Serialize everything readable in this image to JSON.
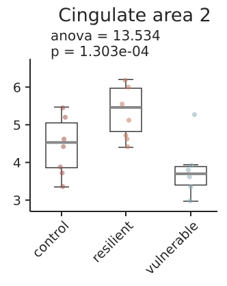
{
  "chart_data": {
    "type": "box",
    "title": "Cingulate area 2",
    "annotations": [
      "anova = 13.534",
      "p = 1.303e-04"
    ],
    "xlabel": "",
    "ylabel": "",
    "ylim": [
      2.7,
      6.75
    ],
    "yticks": [
      3,
      4,
      5,
      6
    ],
    "categories": [
      "control",
      "resilient",
      "vulnerable"
    ],
    "boxes": [
      {
        "name": "control",
        "whislo": 3.35,
        "q1": 3.86,
        "med": 4.53,
        "q3": 5.05,
        "whishi": 5.47,
        "fliers": []
      },
      {
        "name": "resilient",
        "whislo": 4.4,
        "q1": 4.82,
        "med": 5.46,
        "q3": 5.97,
        "whishi": 6.2,
        "fliers": []
      },
      {
        "name": "vulnerable",
        "whislo": 2.97,
        "q1": 3.4,
        "med": 3.7,
        "q3": 3.89,
        "whishi": 3.94,
        "fliers": [
          5.27
        ]
      }
    ],
    "points": [
      {
        "category": "control",
        "offset": 0.02,
        "y": 5.45
      },
      {
        "category": "control",
        "offset": 0.06,
        "y": 5.2
      },
      {
        "category": "control",
        "offset": 0.04,
        "y": 4.62
      },
      {
        "category": "control",
        "offset": 0.03,
        "y": 4.42
      },
      {
        "category": "control",
        "offset": -0.02,
        "y": 3.88
      },
      {
        "category": "control",
        "offset": 0.01,
        "y": 3.72
      },
      {
        "category": "control",
        "offset": 0.02,
        "y": 3.36
      },
      {
        "category": "resilient",
        "offset": -0.01,
        "y": 6.18
      },
      {
        "category": "resilient",
        "offset": 0.04,
        "y": 6.0
      },
      {
        "category": "resilient",
        "offset": -0.06,
        "y": 5.55
      },
      {
        "category": "resilient",
        "offset": 0.05,
        "y": 5.12
      },
      {
        "category": "resilient",
        "offset": 0.0,
        "y": 4.72
      },
      {
        "category": "resilient",
        "offset": 0.02,
        "y": 4.62
      },
      {
        "category": "resilient",
        "offset": 0.03,
        "y": 4.42
      },
      {
        "category": "vulnerable",
        "offset": 0.06,
        "y": 5.27
      },
      {
        "category": "vulnerable",
        "offset": 0.01,
        "y": 3.92
      },
      {
        "category": "vulnerable",
        "offset": -0.04,
        "y": 3.8
      },
      {
        "category": "vulnerable",
        "offset": -0.02,
        "y": 3.62
      },
      {
        "category": "vulnerable",
        "offset": 0.0,
        "y": 3.35
      },
      {
        "category": "vulnerable",
        "offset": -0.01,
        "y": 2.98
      }
    ],
    "colors": {
      "control": "#a05a52",
      "resilient": "#c47c66",
      "vulnerable": "#8fb0b6",
      "box_edge": "#3a3a3a",
      "median": "#8a8a8a"
    },
    "grid": false,
    "legend": "none"
  }
}
